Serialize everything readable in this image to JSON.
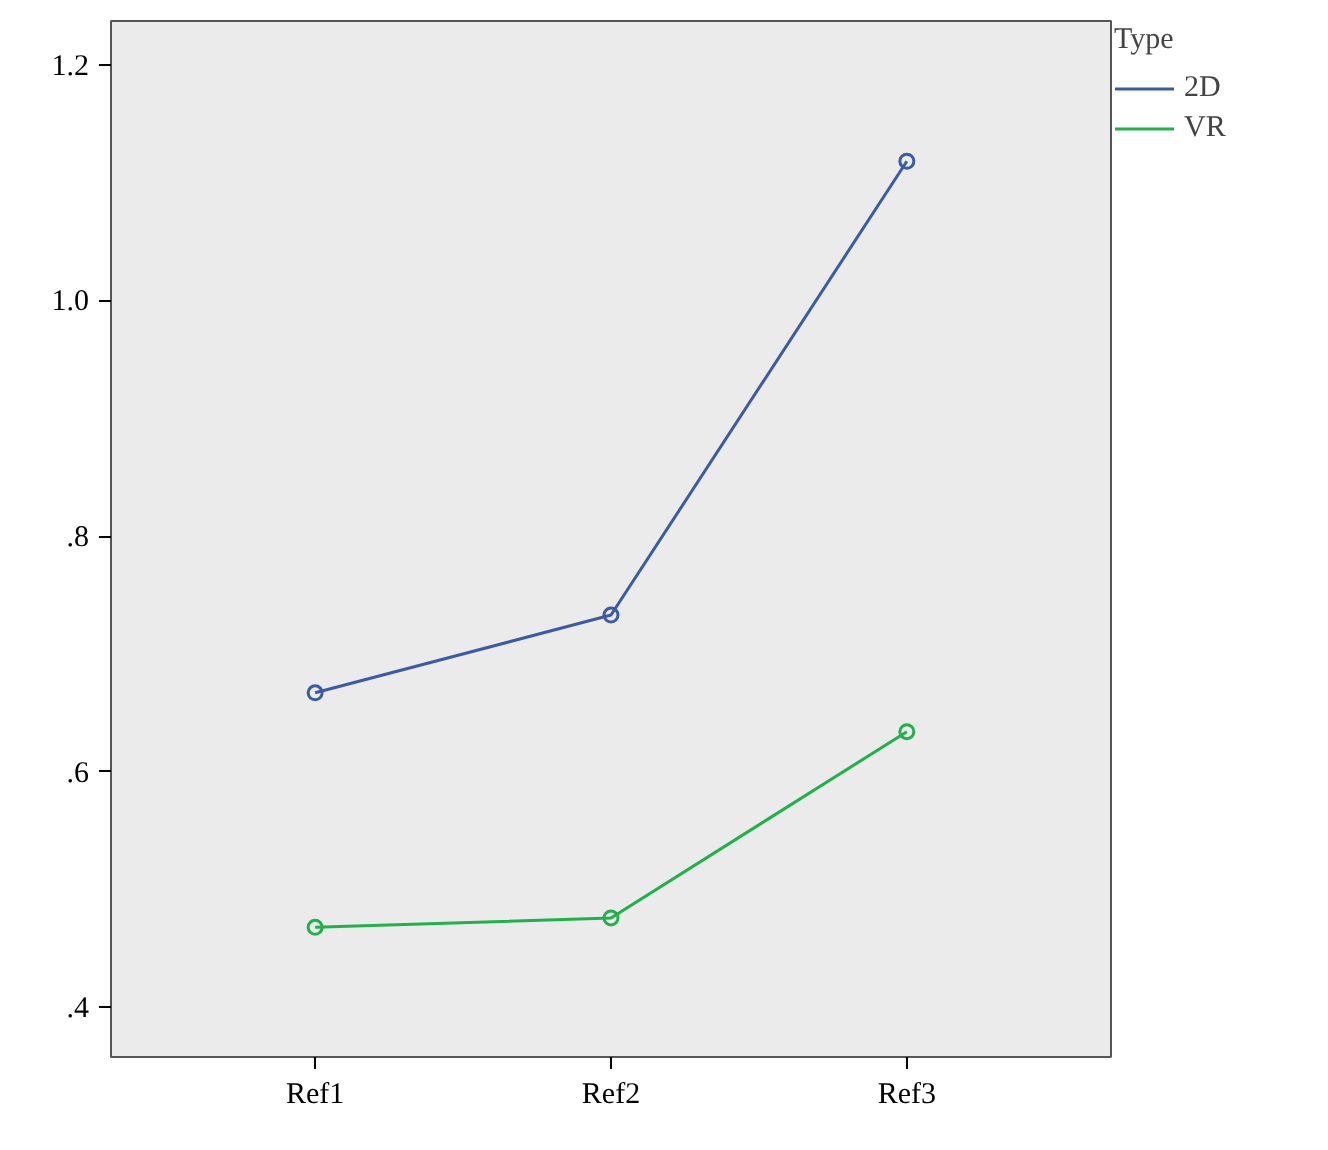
{
  "chart_data": {
    "type": "line",
    "categories": [
      "Ref1",
      "Ref2",
      "Ref3"
    ],
    "series": [
      {
        "name": "2D",
        "color": "#3b5ba5",
        "values": [
          0.667,
          0.733,
          1.118
        ]
      },
      {
        "name": "VR",
        "color": "#1fb24a",
        "values": [
          0.468,
          0.476,
          0.634
        ]
      }
    ],
    "legend_title": "Type",
    "legend": "top right",
    "marker": "circle",
    "grid": false,
    "ylim": [
      0.358,
      1.237
    ],
    "yticks": [
      {
        "value": 0.4,
        "label": ".4"
      },
      {
        "value": 0.6,
        "label": ".6"
      },
      {
        "value": 0.8,
        "label": ".8"
      },
      {
        "value": 1.0,
        "label": "1.0"
      },
      {
        "value": 1.2,
        "label": "1.2"
      }
    ]
  }
}
